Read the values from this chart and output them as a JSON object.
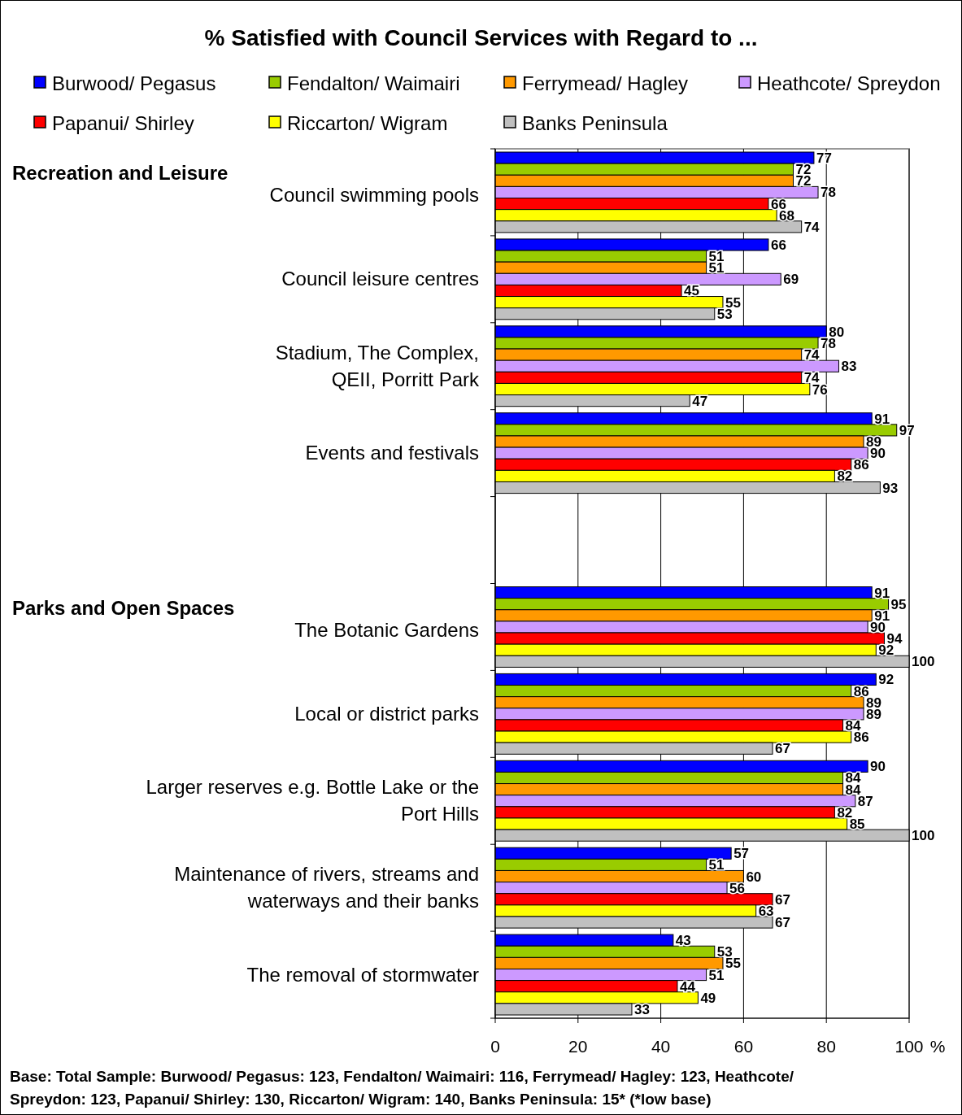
{
  "chart_data": {
    "type": "bar",
    "orientation": "horizontal",
    "title": "% Satisfied with Council Services with Regard to ...",
    "xlabel": "%",
    "categories": [
      "Council swimming pools",
      "Council leisure centres",
      "Stadium, The Complex,\nQEII, Porritt Park",
      "Events and festivals",
      null,
      "The Botanic Gardens",
      "Local or district parks",
      "Larger reserves e.g. Bottle Lake or the\nPort Hills",
      "Maintenance of rivers, streams and\nwaterways and their banks",
      "The removal of stormwater"
    ],
    "series": [
      {
        "name": "Burwood/ Pegasus",
        "color": "#0000ff",
        "values": [
          77,
          66,
          80,
          91,
          null,
          91,
          92,
          90,
          57,
          43
        ]
      },
      {
        "name": "Fendalton/ Waimairi",
        "color": "#99cc00",
        "values": [
          72,
          51,
          78,
          97,
          null,
          95,
          86,
          84,
          51,
          53
        ]
      },
      {
        "name": "Ferrymead/ Hagley",
        "color": "#ff9900",
        "values": [
          72,
          51,
          74,
          89,
          null,
          91,
          89,
          84,
          60,
          55
        ]
      },
      {
        "name": "Heathcote/ Spreydon",
        "color": "#cc99ff",
        "values": [
          78,
          69,
          83,
          90,
          null,
          90,
          89,
          87,
          56,
          51
        ]
      },
      {
        "name": "Papanui/ Shirley",
        "color": "#ff0000",
        "values": [
          66,
          45,
          74,
          86,
          null,
          94,
          84,
          82,
          67,
          44
        ]
      },
      {
        "name": "Riccarton/ Wigram",
        "color": "#ffff00",
        "values": [
          68,
          55,
          76,
          82,
          null,
          92,
          86,
          85,
          63,
          49
        ]
      },
      {
        "name": "Banks Peninsula",
        "color": "#c0c0c0",
        "values": [
          74,
          53,
          47,
          93,
          null,
          100,
          67,
          100,
          67,
          33
        ]
      }
    ],
    "xlim": [
      0,
      100
    ],
    "xticks": [
      0,
      20,
      40,
      60,
      80,
      100
    ],
    "grid": "x",
    "legend": "top",
    "data_labels": true,
    "annotations": [
      "Recreation and Leisure",
      "Parks and Open Spaces",
      "Base:  Total Sample:  Burwood/ Pegasus: 123, Fendalton/ Waimairi: 116, Ferrymead/ Hagley: 123, Heathcote/\nSpreydon: 123, Papanui/ Shirley: 130, Riccarton/ Wigram: 140, Banks Peninsula: 15* (*low base)"
    ]
  }
}
